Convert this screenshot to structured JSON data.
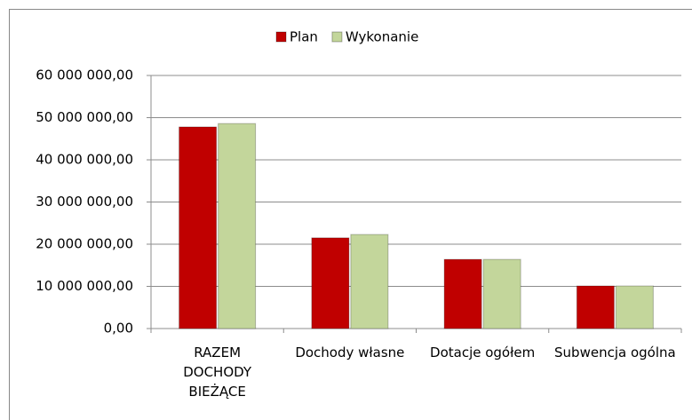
{
  "chart_data": {
    "type": "bar",
    "categories": [
      "RAZEM DOCHODY BIEŻĄCE",
      "Dochody własne",
      "Dotacje ogółem",
      "Subwencja ogólna"
    ],
    "series": [
      {
        "name": "Plan",
        "color": "#c00000",
        "values": [
          47800000,
          21500000,
          16400000,
          10100000
        ]
      },
      {
        "name": "Wykonanie",
        "color": "#c3d69b",
        "values": [
          48600000,
          22300000,
          16400000,
          10100000
        ]
      }
    ],
    "ylim": [
      0,
      60000000
    ],
    "yticks": [
      {
        "value": 0,
        "label": "0,00"
      },
      {
        "value": 10000000,
        "label": "10 000 000,00"
      },
      {
        "value": 20000000,
        "label": "20 000 000,00"
      },
      {
        "value": 30000000,
        "label": "30 000 000,00"
      },
      {
        "value": 40000000,
        "label": "40 000 000,00"
      },
      {
        "value": 50000000,
        "label": "50 000 000,00"
      },
      {
        "value": 60000000,
        "label": "60 000 000,00"
      }
    ],
    "grid": true,
    "legend": "top"
  }
}
